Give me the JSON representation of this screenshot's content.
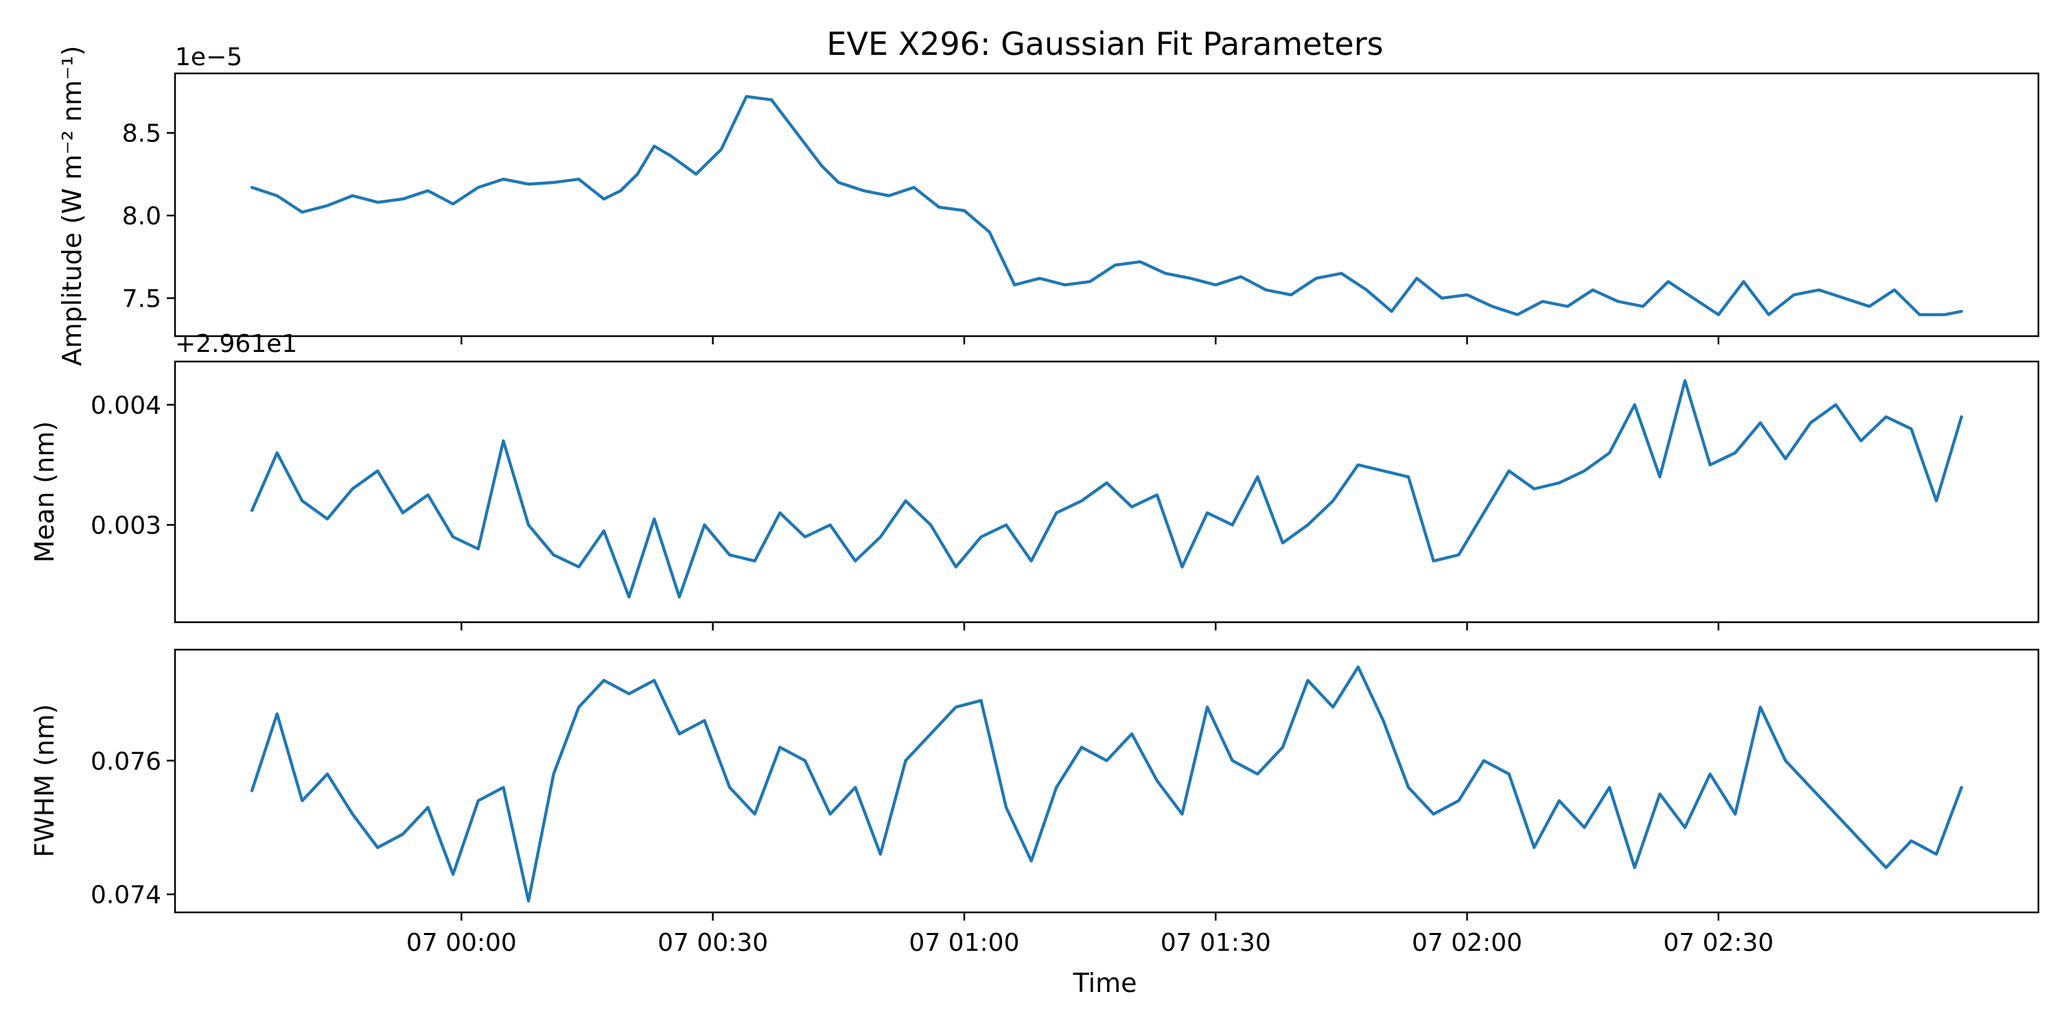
{
  "chart_data": {
    "type": "line",
    "title": "EVE X296: Gaussian Fit Parameters",
    "xlabel": "Time",
    "x_start": "06 23:35",
    "x_end": "07 02:59",
    "xticks": [
      {
        "t": "07 00:00",
        "label": "07 00:00"
      },
      {
        "t": "07 00:30",
        "label": "07 00:30"
      },
      {
        "t": "07 01:00",
        "label": "07 01:00"
      },
      {
        "t": "07 01:30",
        "label": "07 01:30"
      },
      {
        "t": "07 02:00",
        "label": "07 02:00"
      },
      {
        "t": "07 02:30",
        "label": "07 02:30"
      }
    ],
    "color": "#1f77b4",
    "panels": [
      {
        "key": "amplitude",
        "ylabel": "Amplitude (W m⁻² nm⁻¹)",
        "offset_text": "1e−5",
        "ylim": [
          7.27,
          8.86
        ],
        "yticks": [
          {
            "v": 7.5,
            "label": "7.5"
          },
          {
            "v": 8.0,
            "label": "8.0"
          },
          {
            "v": 8.5,
            "label": "8.5"
          }
        ],
        "x": [
          "06 23:35",
          "06 23:38",
          "06 23:41",
          "06 23:44",
          "06 23:47",
          "06 23:50",
          "06 23:53",
          "06 23:56",
          "06 23:59",
          "07 00:02",
          "07 00:05",
          "07 00:08",
          "07 00:11",
          "07 00:14",
          "07 00:17",
          "07 00:19",
          "07 00:21",
          "07 00:23",
          "07 00:25",
          "07 00:28",
          "07 00:31",
          "07 00:34",
          "07 00:37",
          "07 00:40",
          "07 00:43",
          "07 00:45",
          "07 00:48",
          "07 00:51",
          "07 00:54",
          "07 00:57",
          "07 01:00",
          "07 01:03",
          "07 01:06",
          "07 01:09",
          "07 01:12",
          "07 01:15",
          "07 01:18",
          "07 01:21",
          "07 01:24",
          "07 01:27",
          "07 01:30",
          "07 01:33",
          "07 01:36",
          "07 01:39",
          "07 01:42",
          "07 01:45",
          "07 01:48",
          "07 01:51",
          "07 01:54",
          "07 01:57",
          "07 02:00",
          "07 02:03",
          "07 02:06",
          "07 02:09",
          "07 02:12",
          "07 02:15",
          "07 02:18",
          "07 02:21",
          "07 02:24",
          "07 02:27",
          "07 02:30",
          "07 02:33",
          "07 02:36",
          "07 02:39",
          "07 02:42",
          "07 02:45",
          "07 02:48",
          "07 02:51",
          "07 02:54",
          "07 02:57",
          "07 02:59"
        ],
        "y": [
          8.17,
          8.12,
          8.02,
          8.06,
          8.12,
          8.08,
          8.1,
          8.15,
          8.07,
          8.17,
          8.22,
          8.19,
          8.2,
          8.22,
          8.1,
          8.15,
          8.25,
          8.42,
          8.36,
          8.25,
          8.4,
          8.72,
          8.7,
          8.5,
          8.3,
          8.2,
          8.15,
          8.12,
          8.17,
          8.05,
          8.03,
          7.9,
          7.58,
          7.62,
          7.58,
          7.6,
          7.7,
          7.72,
          7.65,
          7.62,
          7.58,
          7.63,
          7.55,
          7.52,
          7.62,
          7.65,
          7.55,
          7.42,
          7.62,
          7.5,
          7.52,
          7.45,
          7.4,
          7.48,
          7.45,
          7.55,
          7.48,
          7.45,
          7.6,
          7.5,
          7.4,
          7.6,
          7.4,
          7.52,
          7.55,
          7.5,
          7.45,
          7.55,
          7.4,
          7.4,
          7.42
        ]
      },
      {
        "key": "mean",
        "ylabel": "Mean (nm)",
        "offset_text": "+2.961e1",
        "ylim": [
          0.00219,
          0.00436
        ],
        "yticks": [
          {
            "v": 0.003,
            "label": "0.003"
          },
          {
            "v": 0.004,
            "label": "0.004"
          }
        ],
        "x": [
          "06 23:35",
          "06 23:38",
          "06 23:41",
          "06 23:44",
          "06 23:47",
          "06 23:50",
          "06 23:53",
          "06 23:56",
          "06 23:59",
          "07 00:02",
          "07 00:05",
          "07 00:08",
          "07 00:11",
          "07 00:14",
          "07 00:17",
          "07 00:20",
          "07 00:23",
          "07 00:26",
          "07 00:29",
          "07 00:32",
          "07 00:35",
          "07 00:38",
          "07 00:41",
          "07 00:44",
          "07 00:47",
          "07 00:50",
          "07 00:53",
          "07 00:56",
          "07 00:59",
          "07 01:02",
          "07 01:05",
          "07 01:08",
          "07 01:11",
          "07 01:14",
          "07 01:17",
          "07 01:20",
          "07 01:23",
          "07 01:26",
          "07 01:29",
          "07 01:32",
          "07 01:35",
          "07 01:38",
          "07 01:41",
          "07 01:44",
          "07 01:47",
          "07 01:50",
          "07 01:53",
          "07 01:56",
          "07 01:59",
          "07 02:02",
          "07 02:05",
          "07 02:08",
          "07 02:11",
          "07 02:14",
          "07 02:17",
          "07 02:20",
          "07 02:23",
          "07 02:26",
          "07 02:29",
          "07 02:32",
          "07 02:35",
          "07 02:38",
          "07 02:41",
          "07 02:44",
          "07 02:47",
          "07 02:50",
          "07 02:53",
          "07 02:56",
          "07 02:59"
        ],
        "y": [
          0.00312,
          0.0036,
          0.0032,
          0.00305,
          0.0033,
          0.00345,
          0.0031,
          0.00325,
          0.0029,
          0.0028,
          0.0037,
          0.003,
          0.00275,
          0.00265,
          0.00295,
          0.0024,
          0.00305,
          0.0024,
          0.003,
          0.00275,
          0.0027,
          0.0031,
          0.0029,
          0.003,
          0.0027,
          0.0029,
          0.0032,
          0.003,
          0.00265,
          0.0029,
          0.003,
          0.0027,
          0.0031,
          0.0032,
          0.00335,
          0.00315,
          0.00325,
          0.00265,
          0.0031,
          0.003,
          0.0034,
          0.00285,
          0.003,
          0.0032,
          0.0035,
          0.00345,
          0.0034,
          0.0027,
          0.00275,
          0.0031,
          0.00345,
          0.0033,
          0.00335,
          0.00345,
          0.0036,
          0.004,
          0.0034,
          0.0042,
          0.0035,
          0.0036,
          0.00385,
          0.00355,
          0.00385,
          0.004,
          0.0037,
          0.0039,
          0.0038,
          0.0032,
          0.0039
        ]
      },
      {
        "key": "fwhm",
        "ylabel": "FWHM (nm)",
        "offset_text": "",
        "ylim": [
          0.07373,
          0.07766
        ],
        "yticks": [
          {
            "v": 0.074,
            "label": "0.074"
          },
          {
            "v": 0.076,
            "label": "0.076"
          }
        ],
        "x": [
          "06 23:35",
          "06 23:38",
          "06 23:41",
          "06 23:44",
          "06 23:47",
          "06 23:50",
          "06 23:53",
          "06 23:56",
          "06 23:59",
          "07 00:02",
          "07 00:05",
          "07 00:08",
          "07 00:11",
          "07 00:14",
          "07 00:17",
          "07 00:20",
          "07 00:23",
          "07 00:26",
          "07 00:29",
          "07 00:32",
          "07 00:35",
          "07 00:38",
          "07 00:41",
          "07 00:44",
          "07 00:47",
          "07 00:50",
          "07 00:53",
          "07 00:56",
          "07 00:59",
          "07 01:02",
          "07 01:05",
          "07 01:08",
          "07 01:11",
          "07 01:14",
          "07 01:17",
          "07 01:20",
          "07 01:23",
          "07 01:26",
          "07 01:29",
          "07 01:32",
          "07 01:35",
          "07 01:38",
          "07 01:41",
          "07 01:44",
          "07 01:47",
          "07 01:50",
          "07 01:53",
          "07 01:56",
          "07 01:59",
          "07 02:02",
          "07 02:05",
          "07 02:08",
          "07 02:11",
          "07 02:14",
          "07 02:17",
          "07 02:20",
          "07 02:23",
          "07 02:26",
          "07 02:29",
          "07 02:32",
          "07 02:35",
          "07 02:38",
          "07 02:41",
          "07 02:44",
          "07 02:47",
          "07 02:50",
          "07 02:53",
          "07 02:56",
          "07 02:59"
        ],
        "y": [
          0.07555,
          0.0767,
          0.0754,
          0.0758,
          0.0752,
          0.0747,
          0.0749,
          0.0753,
          0.0743,
          0.0754,
          0.0756,
          0.0739,
          0.0758,
          0.0768,
          0.0772,
          0.077,
          0.0772,
          0.0764,
          0.0766,
          0.0756,
          0.0752,
          0.0762,
          0.076,
          0.0752,
          0.0756,
          0.0746,
          0.076,
          0.0764,
          0.0768,
          0.0769,
          0.0753,
          0.0745,
          0.0756,
          0.0762,
          0.076,
          0.0764,
          0.0757,
          0.0752,
          0.0768,
          0.076,
          0.0758,
          0.0762,
          0.0772,
          0.0768,
          0.0774,
          0.0766,
          0.0756,
          0.0752,
          0.0754,
          0.076,
          0.0758,
          0.0747,
          0.0754,
          0.075,
          0.0756,
          0.0744,
          0.0755,
          0.075,
          0.0758,
          0.0752,
          0.0768,
          0.076,
          0.0756,
          0.0752,
          0.0748,
          0.0744,
          0.0748,
          0.0746,
          0.0756
        ]
      }
    ]
  }
}
